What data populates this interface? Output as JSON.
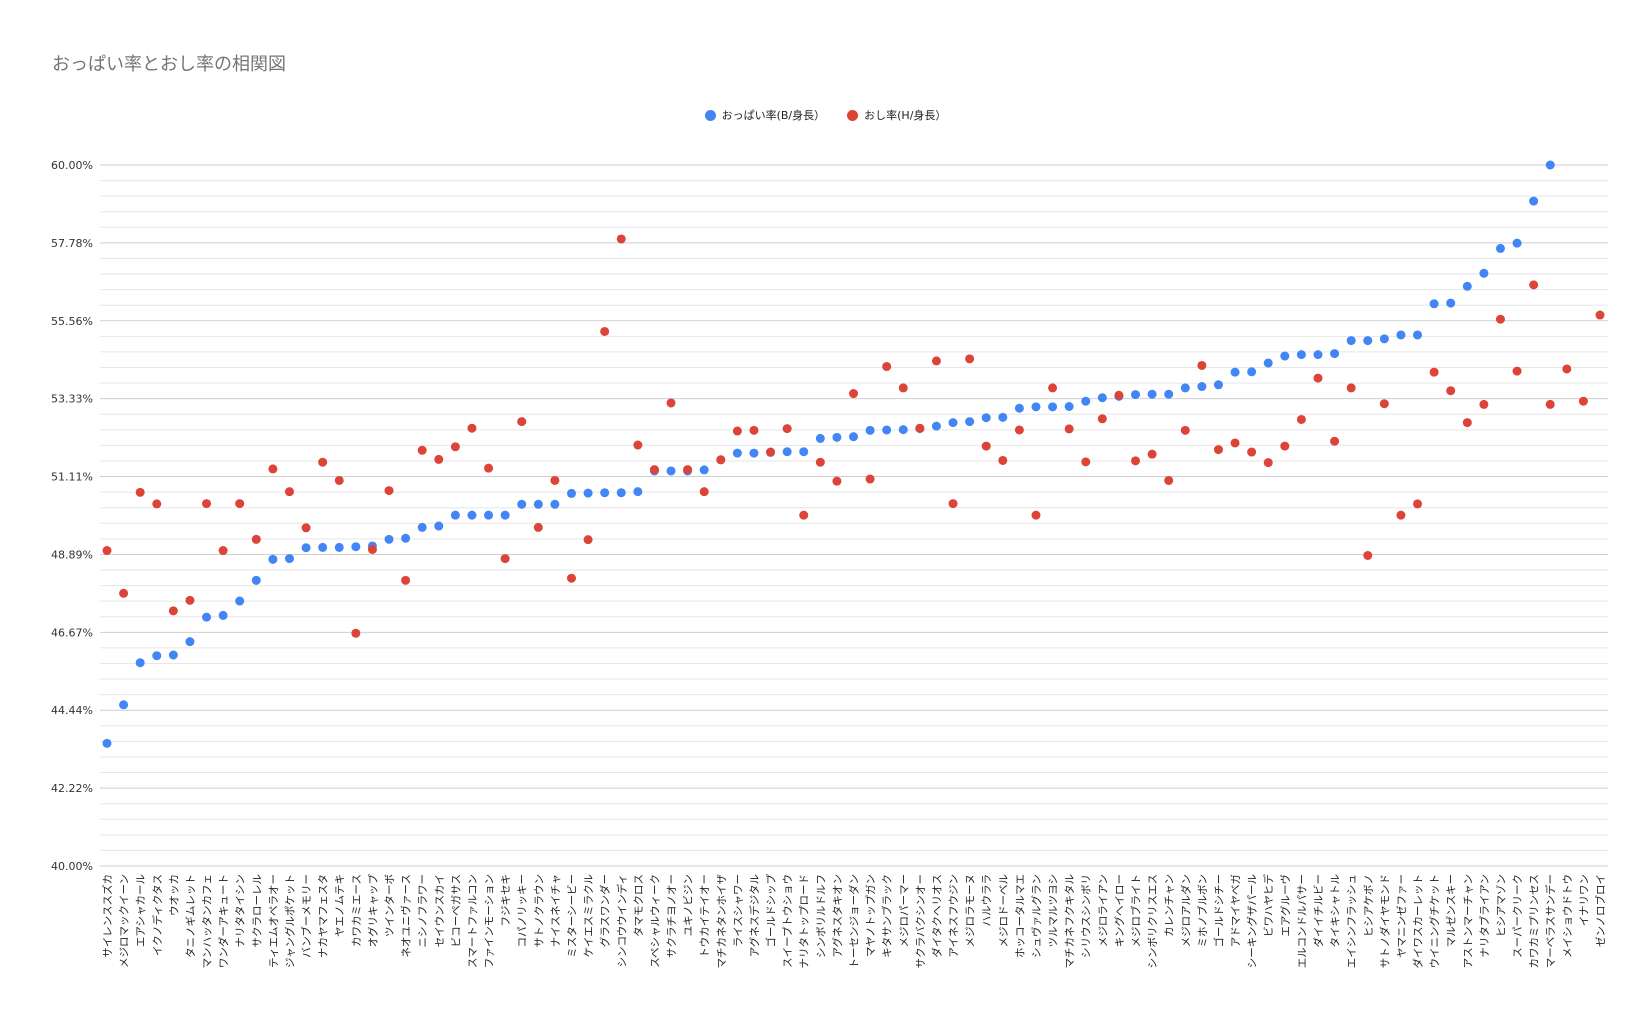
{
  "chart_data": {
    "type": "scatter",
    "title": "おっぱい率とおし率の相関図",
    "legend_position": "top",
    "ylim": [
      0.4,
      0.6
    ],
    "y_ticks": [
      "40.00%",
      "42.22%",
      "44.44%",
      "46.67%",
      "48.89%",
      "51.11%",
      "53.33%",
      "55.56%",
      "57.78%",
      "60.00%"
    ],
    "grid": true,
    "categories": [
      "サイレンススズカ",
      "メジロマックイーン",
      "エアシャカール",
      "イクノディクタス",
      "ウオッカ",
      "タニノギムレット",
      "マンハッタンカフェ",
      "ワンダーアキュート",
      "ナリタタイシン",
      "サクラローレル",
      "ティエムオペラオー",
      "ジャングルポケット",
      "バンブーメモリー",
      "ナカヤマフェスタ",
      "ヤエノムテキ",
      "カワカミエース",
      "オグリキャップ",
      "ツインターボ",
      "ネオユニヴァース",
      "ニシノフラワー",
      "セイウンスカイ",
      "ビコーペガサス",
      "スマートファルコン",
      "ファインモーション",
      "フジキセキ",
      "コパノリッキー",
      "サトノクラウン",
      "ナイスネイチャ",
      "ミスターシービー",
      "ケイエスミラクル",
      "グラスワンダー",
      "シンコウウインディ",
      "タマモクロス",
      "スペシャルウィーク",
      "サクラチヨノオー",
      "ユキノビジン",
      "トウカイテイオー",
      "マチカネタンホイザ",
      "ライスシャワー",
      "アグネスデジタル",
      "ゴールドシップ",
      "スイープトウショウ",
      "ナリタトップロード",
      "シンボリルドルフ",
      "アグネスタキオン",
      "トーセンジョーダン",
      "マヤノトップガン",
      "キタサンブラック",
      "メジロパーマー",
      "サクラバクシンオー",
      "ダイタクヘリオス",
      "アイネスフウジン",
      "メジロラモーヌ",
      "ハルウララ",
      "メジロドーベル",
      "ホッコータルマエ",
      "シュヴァルグラン",
      "ツルマルツヨシ",
      "マチカネフクキタル",
      "シリウスシンボリ",
      "メジロライアン",
      "キングヘイロー",
      "メジロブライト",
      "シンボリクリスエス",
      "カレンチャン",
      "メジロアルダン",
      "ミホノブルボン",
      "ゴールドシチー",
      "アドマイヤベガ",
      "シーキングザパール",
      "ビワハヤヒデ",
      "エアグルーヴ",
      "エルコンドルパサー",
      "ダイイチルビー",
      "タイキシャトル",
      "エイシンフラッシュ",
      "ヒシアケボノ",
      "サトノダイヤモンド",
      "ヤマニンゼファー",
      "ダイワスカーレット",
      "ウイニングチケット",
      "マルゼンスキー",
      "アストンマーチャン",
      "ナリタブライアン",
      "ヒシアマゾン",
      "スーパークリーク",
      "カワカミプリンセス",
      "マーベラスサンデー",
      "メイショウドトウ",
      "イナリワン",
      "ゼンノロブロイ"
    ],
    "series": [
      {
        "name": "おっぱい率(B/身長）",
        "color": "#4285f4",
        "values": [
          0.435,
          0.446,
          0.458,
          0.46,
          0.4602,
          0.464,
          0.471,
          0.4715,
          0.4756,
          0.4815,
          0.4875,
          0.4877,
          0.4908,
          0.4909,
          0.4909,
          0.4911,
          0.4913,
          0.4932,
          0.4935,
          0.4966,
          0.497,
          0.5001,
          0.5001,
          0.5001,
          0.5001,
          0.5032,
          0.5032,
          0.5032,
          0.5063,
          0.5064,
          0.5065,
          0.5065,
          0.5068,
          0.5127,
          0.5127,
          0.5127,
          0.513,
          0.5159,
          0.5178,
          0.5178,
          0.518,
          0.5182,
          0.5182,
          0.522,
          0.5223,
          0.5225,
          0.5243,
          0.5244,
          0.5245,
          0.5248,
          0.5255,
          0.5265,
          0.5268,
          0.5279,
          0.528,
          0.5306,
          0.531,
          0.531,
          0.5311,
          0.5326,
          0.5336,
          0.534,
          0.5345,
          0.5346,
          0.5346,
          0.5364,
          0.5368,
          0.5373,
          0.5409,
          0.541,
          0.5435,
          0.5455,
          0.5459,
          0.5459,
          0.5462,
          0.5499,
          0.5499,
          0.5504,
          0.5515,
          0.5515,
          0.5604,
          0.5606,
          0.5654,
          0.5691,
          0.5762,
          0.5777,
          0.5897,
          0.6,
          null,
          null,
          null
        ]
      },
      {
        "name": "おし率(H/身長）",
        "color": "#db4437",
        "values": [
          0.49,
          0.4778,
          0.5066,
          0.5033,
          0.4728,
          0.4758,
          0.5034,
          0.49,
          0.5034,
          0.4932,
          0.5133,
          0.5068,
          0.4965,
          0.5152,
          0.51,
          0.4664,
          0.4903,
          0.5071,
          0.4815,
          0.5186,
          0.516,
          0.5196,
          0.5249,
          0.5135,
          0.4877,
          0.5268,
          0.4966,
          0.51,
          0.4821,
          0.4931,
          0.5525,
          0.5789,
          0.5201,
          0.5131,
          0.5321,
          0.5131,
          0.5068,
          0.5159,
          0.5241,
          0.5243,
          0.5181,
          0.5248,
          0.5001,
          0.5152,
          0.5098,
          0.5348,
          0.5104,
          0.5425,
          0.5364,
          0.5249,
          0.5441,
          0.5034,
          0.5447,
          0.5198,
          0.5157,
          0.5244,
          0.5001,
          0.5364,
          0.5247,
          0.5153,
          0.5276,
          0.5343,
          0.5156,
          0.5175,
          0.51,
          0.5243,
          0.5428,
          0.5188,
          0.5207,
          0.5181,
          0.5151,
          0.5198,
          0.5274,
          0.5392,
          0.5212,
          0.5364,
          0.4886,
          0.5319,
          0.5001,
          0.5033,
          0.5409,
          0.5356,
          0.5265,
          0.5317,
          0.556,
          0.5412,
          0.5658,
          0.5317,
          0.5418,
          0.5326,
          0.5572
        ]
      }
    ]
  }
}
